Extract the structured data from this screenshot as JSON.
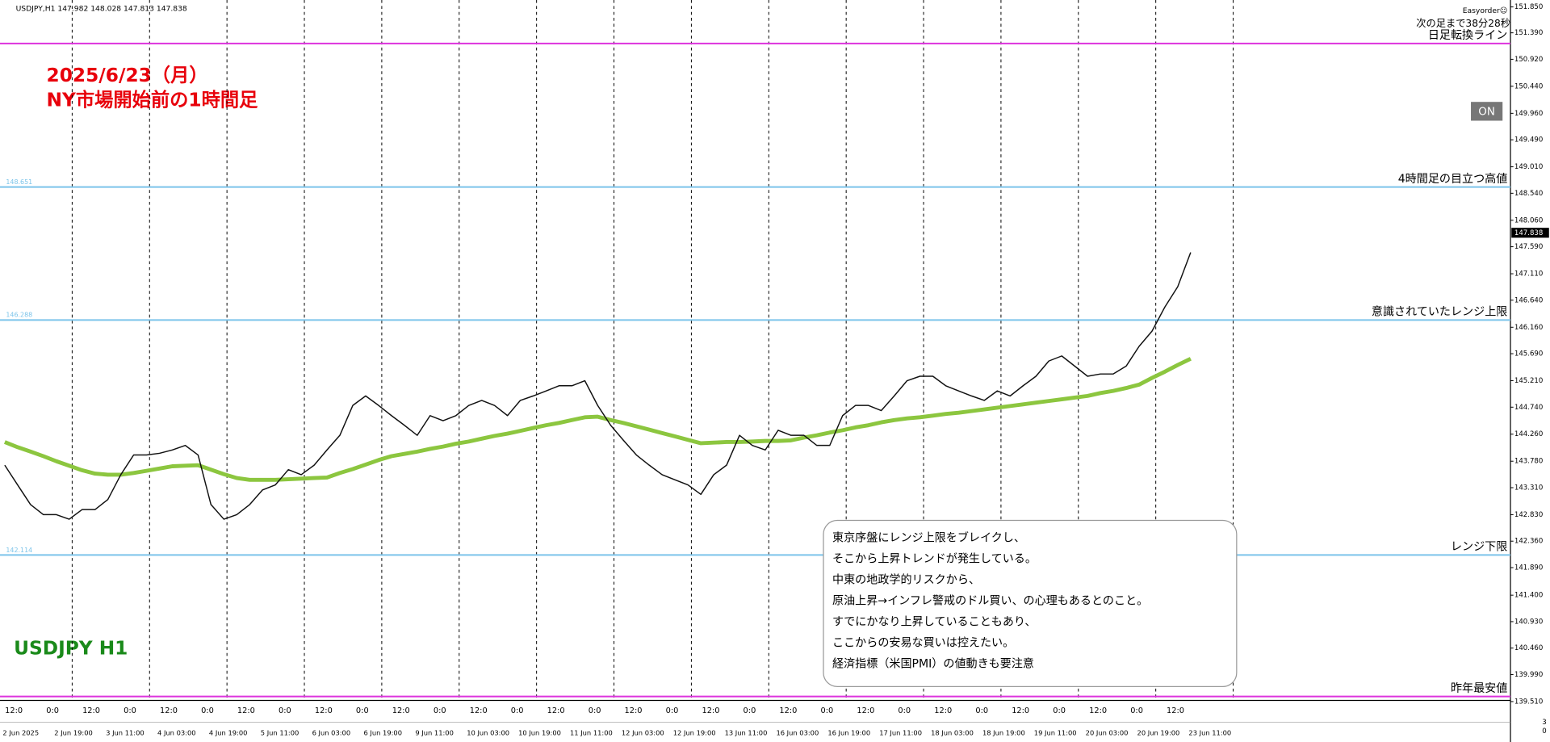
{
  "chart_data": {
    "type": "line",
    "header": "USDJPY,H1  147.982 148.028 147.813 147.838",
    "plugin": "Easyorder☺",
    "countdown": "次の足まで38分28秒",
    "title": "2025/6/23（月）",
    "subtitle": "NY市場開始前の1時間足",
    "symbol_label": "USDJPY H1",
    "button": "ON",
    "last_price": 147.838,
    "corner_labels": [
      "3",
      "0"
    ],
    "ylim": [
      139.53,
      151.973
    ],
    "yticks": [
      {
        "value": 151.85,
        "label": "151.850"
      },
      {
        "value": 151.39,
        "label": "151.390"
      },
      {
        "value": 150.92,
        "label": "150.920"
      },
      {
        "value": 150.44,
        "label": "150.440"
      },
      {
        "value": 149.96,
        "label": "149.960"
      },
      {
        "value": 149.49,
        "label": "149.490"
      },
      {
        "value": 149.01,
        "label": "149.010"
      },
      {
        "value": 148.54,
        "label": "148.540"
      },
      {
        "value": 148.06,
        "label": "148.060"
      },
      {
        "value": 147.59,
        "label": "147.590"
      },
      {
        "value": 147.11,
        "label": "147.110"
      },
      {
        "value": 146.64,
        "label": "146.640"
      },
      {
        "value": 146.16,
        "label": "146.160"
      },
      {
        "value": 145.69,
        "label": "145.690"
      },
      {
        "value": 145.21,
        "label": "145.210"
      },
      {
        "value": 144.74,
        "label": "144.740"
      },
      {
        "value": 144.26,
        "label": "144.260"
      },
      {
        "value": 143.78,
        "label": "143.780"
      },
      {
        "value": 143.31,
        "label": "143.310"
      },
      {
        "value": 142.83,
        "label": "142.830"
      },
      {
        "value": 142.36,
        "label": "142.360"
      },
      {
        "value": 141.89,
        "label": "141.890"
      },
      {
        "value": 141.4,
        "label": "141.400"
      },
      {
        "value": 140.93,
        "label": "140.930"
      },
      {
        "value": 140.46,
        "label": "140.460"
      },
      {
        "value": 139.99,
        "label": "139.990"
      },
      {
        "value": 139.51,
        "label": "139.510"
      }
    ],
    "hour_labels": [
      "12:0",
      "0:0",
      "12:0",
      "0:0",
      "12:0",
      "0:0",
      "12:0",
      "0:0",
      "12:0",
      "0:0",
      "12:0",
      "0:0",
      "12:0",
      "0:0",
      "12:0",
      "0:0",
      "12:0",
      "0:0",
      "12:0",
      "0:0",
      "12:0",
      "0:0",
      "12:0",
      "0:0",
      "12:0",
      "0:0",
      "12:0",
      "0:0",
      "12:0",
      "0:0",
      "12:0"
    ],
    "categories": [
      "2 Jun 2025",
      null,
      null,
      null,
      "2 Jun 19:00",
      null,
      null,
      null,
      "3 Jun 11:00",
      null,
      null,
      null,
      "4 Jun 03:00",
      null,
      null,
      null,
      "4 Jun 19:00",
      null,
      null,
      null,
      "5 Jun 11:00",
      null,
      null,
      null,
      "6 Jun 03:00",
      null,
      null,
      null,
      "6 Jun 19:00",
      null,
      null,
      null,
      "9 Jun 11:00",
      null,
      null,
      null,
      "10 Jun 03:00",
      null,
      null,
      null,
      "10 Jun 19:00",
      null,
      null,
      null,
      "11 Jun 11:00",
      null,
      null,
      null,
      "12 Jun 03:00",
      null,
      null,
      null,
      "12 Jun 19:00",
      null,
      null,
      null,
      "13 Jun 11:00",
      null,
      null,
      null,
      "16 Jun 03:00",
      null,
      null,
      null,
      "16 Jun 19:00",
      null,
      null,
      null,
      "17 Jun 11:00",
      null,
      null,
      null,
      "18 Jun 03:00",
      null,
      null,
      null,
      "18 Jun 19:00",
      null,
      null,
      null,
      "19 Jun 11:00",
      null,
      null,
      null,
      "20 Jun 03:00",
      null,
      null,
      null,
      "20 Jun 19:00",
      null,
      null,
      null,
      "23 Jun 11:00"
    ],
    "series": [
      {
        "name": "USDJPY",
        "color": "#111111",
        "values": [
          143.71,
          143.36,
          143.01,
          142.83,
          142.83,
          142.75,
          142.92,
          142.92,
          143.1,
          143.54,
          143.89,
          143.89,
          143.92,
          143.98,
          144.06,
          143.89,
          143.01,
          142.75,
          142.83,
          143.01,
          143.27,
          143.36,
          143.63,
          143.54,
          143.71,
          143.98,
          144.24,
          144.77,
          144.94,
          144.77,
          144.59,
          144.42,
          144.24,
          144.59,
          144.5,
          144.59,
          144.77,
          144.86,
          144.77,
          144.59,
          144.86,
          144.94,
          145.03,
          145.12,
          145.12,
          145.21,
          144.77,
          144.42,
          144.15,
          143.89,
          143.71,
          143.54,
          143.45,
          143.36,
          143.19,
          143.54,
          143.71,
          144.24,
          144.06,
          143.98,
          144.33,
          144.24,
          144.24,
          144.06,
          144.06,
          144.59,
          144.77,
          144.77,
          144.68,
          144.94,
          145.21,
          145.29,
          145.29,
          145.12,
          145.03,
          144.94,
          144.86,
          145.03,
          144.94,
          145.12,
          145.29,
          145.56,
          145.65,
          145.47,
          145.29,
          145.33,
          145.33,
          145.47,
          145.82,
          146.09,
          146.52,
          146.88,
          147.49
        ]
      },
      {
        "name": "MA",
        "color": "#8cc63f",
        "values": [
          144.12,
          144.03,
          143.95,
          143.87,
          143.78,
          143.7,
          143.62,
          143.56,
          143.54,
          143.54,
          143.57,
          143.61,
          143.65,
          143.69,
          143.7,
          143.71,
          143.63,
          143.55,
          143.48,
          143.45,
          143.45,
          143.45,
          143.46,
          143.47,
          143.48,
          143.49,
          143.57,
          143.64,
          143.72,
          143.8,
          143.87,
          143.91,
          143.95,
          144.0,
          144.04,
          144.09,
          144.13,
          144.18,
          144.23,
          144.27,
          144.32,
          144.37,
          144.42,
          144.46,
          144.51,
          144.56,
          144.57,
          144.51,
          144.46,
          144.4,
          144.34,
          144.28,
          144.22,
          144.16,
          144.1,
          144.11,
          144.12,
          144.12,
          144.13,
          144.14,
          144.14,
          144.15,
          144.2,
          144.24,
          144.29,
          144.33,
          144.38,
          144.42,
          144.47,
          144.51,
          144.54,
          144.56,
          144.59,
          144.62,
          144.64,
          144.67,
          144.7,
          144.73,
          144.76,
          144.79,
          144.82,
          144.85,
          144.88,
          144.91,
          144.94,
          144.99,
          145.03,
          145.08,
          145.14,
          145.26,
          145.37,
          145.49,
          145.6
        ]
      }
    ],
    "levels": [
      {
        "value": 151.2,
        "color": "#dd33dd",
        "label": "日足転換ライン"
      },
      {
        "value": 148.651,
        "color": "#7cc4ea",
        "label": "4時間足の目立つ高値",
        "show_value": true
      },
      {
        "value": 146.288,
        "color": "#7cc4ea",
        "label": "意識されていたレンジ上限",
        "show_value": true
      },
      {
        "value": 142.114,
        "color": "#7cc4ea",
        "label": "レンジ下限",
        "show_value": true
      },
      {
        "value": 139.6,
        "color": "#dd33dd",
        "label": "昨年最安値"
      }
    ],
    "note": [
      "東京序盤にレンジ上限をブレイクし、",
      "そこから上昇トレンドが発生している。",
      "中東の地政学的リスクから、",
      "原油上昇→インフレ警戒のドル買い、の心理もあるとのこと。",
      "すでにかなり上昇していることもあり、",
      "ここからの安易な買いは控えたい。",
      "経済指標（米国PMI）の値動きも要注意"
    ]
  }
}
